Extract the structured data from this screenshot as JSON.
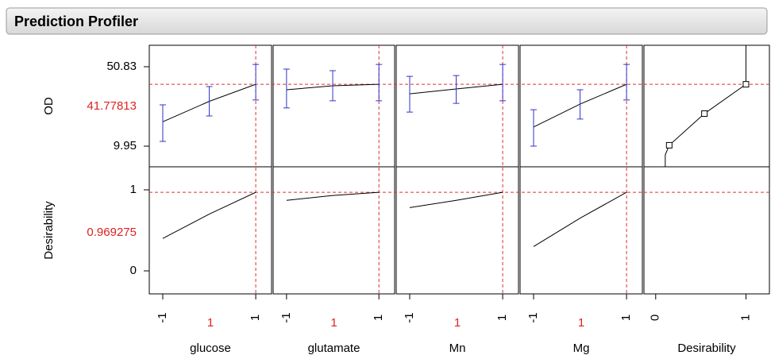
{
  "title": "Prediction Profiler",
  "responses": [
    {
      "name": "OD",
      "current": 41.77813,
      "ylim": [
        -0.68,
        61.87
      ],
      "yticks": [
        9.95,
        50.83
      ]
    },
    {
      "name": "Desirability",
      "current": 0.969275,
      "ylim": [
        -0.284,
        1.284
      ],
      "yticks": [
        0,
        1
      ]
    }
  ],
  "factors": [
    {
      "name": "glucose",
      "current": 1,
      "xlim": [
        -1.29,
        1.34
      ],
      "xticks": [
        -1,
        1
      ],
      "x": [
        -1,
        0,
        1
      ],
      "od": [
        22.5,
        33.0,
        41.77813
      ],
      "od_lower": [
        12.4,
        25.5,
        33.7
      ],
      "od_upper": [
        31.2,
        40.6,
        52.0
      ],
      "desirability": [
        0.4,
        0.7,
        0.969275
      ]
    },
    {
      "name": "glutamate",
      "current": 1,
      "xlim": [
        -1.29,
        1.34
      ],
      "xticks": [
        -1,
        1
      ],
      "x": [
        -1,
        0,
        1
      ],
      "od": [
        38.97,
        41.0,
        41.77813
      ],
      "od_lower": [
        29.6,
        33.3,
        33.3
      ],
      "od_upper": [
        49.6,
        48.8,
        52.0
      ],
      "desirability": [
        0.87,
        0.93,
        0.969275
      ]
    },
    {
      "name": "Mn",
      "current": 1,
      "xlim": [
        -1.29,
        1.34
      ],
      "xticks": [
        -1,
        1
      ],
      "x": [
        -1,
        0,
        1
      ],
      "od": [
        36.9,
        39.4,
        41.77813
      ],
      "od_lower": [
        27.5,
        32.0,
        33.3
      ],
      "od_upper": [
        45.9,
        46.3,
        52.0
      ],
      "desirability": [
        0.78,
        0.87,
        0.969275
      ]
    },
    {
      "name": "Mg",
      "current": 1,
      "xlim": [
        -1.29,
        1.34
      ],
      "xticks": [
        -1,
        1
      ],
      "x": [
        -1,
        0,
        1
      ],
      "od": [
        19.8,
        31.6,
        41.77813
      ],
      "od_lower": [
        9.95,
        23.9,
        33.7
      ],
      "od_upper": [
        28.7,
        39.0,
        52.0
      ],
      "desirability": [
        0.3,
        0.65,
        0.969275
      ]
    }
  ],
  "desirability_axis": {
    "name": "Desirability",
    "xlim": [
      -0.13,
      1.26
    ],
    "xticks": [
      0,
      1
    ],
    "desirability": [
      0.15,
      0.54,
      1.0
    ],
    "od": [
      10.4,
      26.7,
      41.77813
    ]
  }
}
